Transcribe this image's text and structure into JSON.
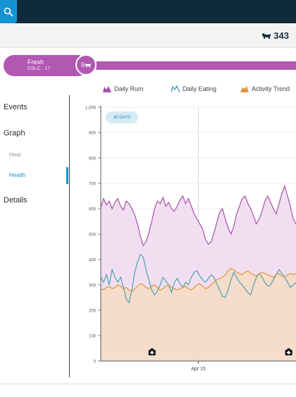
{
  "header": {
    "cow_count": "343",
    "cow_icon": "cow-icon",
    "search_icon": "search-icon"
  },
  "stage": {
    "name": "Fresh",
    "dslc": "DSLC : 17",
    "lactation": "5"
  },
  "sidebar": {
    "events": "Events",
    "graph": "Graph",
    "graph_items": [
      "Heat",
      "Health"
    ],
    "details": "Details"
  },
  "legend": [
    "Daily Rum",
    "Daily Eating",
    "Activity Trend"
  ],
  "colors": {
    "rum": "#a353a7",
    "eating": "#4aa3ad",
    "activity": "#e1953b",
    "accent": "#1493d1",
    "stage": "#b257b2"
  },
  "badge": "30 DAYS",
  "chart_data": {
    "type": "line",
    "xlabel": "",
    "ylabel": "",
    "x_tick_labels": [
      "Apr 15"
    ],
    "yticks": [
      0,
      100,
      200,
      300,
      400,
      500,
      600,
      700,
      800,
      900,
      "1,000"
    ],
    "ylim": [
      0,
      1000
    ],
    "x_range_days": 40,
    "series": [
      {
        "name": "Daily Rum",
        "filled": true,
        "values": [
          605,
          640,
          615,
          630,
          600,
          625,
          640,
          610,
          595,
          630,
          620,
          600,
          575,
          540,
          490,
          455,
          470,
          505,
          550,
          600,
          630,
          620,
          645,
          610,
          625,
          600,
          590,
          610,
          635,
          650,
          620,
          640,
          610,
          580,
          560,
          540,
          520,
          480,
          460,
          470,
          505,
          545,
          585,
          600,
          560,
          525,
          500,
          530,
          580,
          610,
          640,
          650,
          620,
          600,
          570,
          540,
          560,
          590,
          630,
          650,
          625,
          600,
          580,
          620,
          660,
          690,
          650,
          610,
          560,
          540
        ]
      },
      {
        "name": "Daily Eating",
        "filled": false,
        "values": [
          330,
          310,
          340,
          300,
          360,
          330,
          310,
          330,
          290,
          245,
          230,
          280,
          350,
          390,
          420,
          410,
          360,
          320,
          280,
          260,
          275,
          300,
          330,
          315,
          300,
          270,
          310,
          325,
          305,
          290,
          310,
          300,
          330,
          350,
          355,
          335,
          320,
          310,
          325,
          340,
          330,
          305,
          280,
          255,
          250,
          280,
          320,
          350,
          330,
          310,
          300,
          285,
          270,
          260,
          300,
          330,
          345,
          330,
          310,
          295,
          300,
          320,
          340,
          360,
          345,
          330,
          310,
          290,
          300,
          310
        ]
      },
      {
        "name": "Activity Trend",
        "filled": true,
        "values": [
          285,
          280,
          290,
          295,
          285,
          290,
          300,
          295,
          285,
          290,
          280,
          275,
          285,
          295,
          305,
          300,
          290,
          285,
          295,
          300,
          290,
          280,
          285,
          295,
          300,
          290,
          285,
          280,
          285,
          290,
          295,
          285,
          280,
          290,
          300,
          305,
          295,
          285,
          290,
          300,
          310,
          320,
          325,
          330,
          340,
          355,
          365,
          360,
          350,
          345,
          340,
          350,
          355,
          345,
          340,
          335,
          345,
          350,
          345,
          340,
          335,
          330,
          340,
          345,
          335,
          330,
          340,
          345,
          340,
          345
        ]
      }
    ],
    "markers": [
      {
        "name": "treatment-icon",
        "day": 10.5
      },
      {
        "name": "clipboard-icon",
        "day": 38.5
      }
    ]
  }
}
